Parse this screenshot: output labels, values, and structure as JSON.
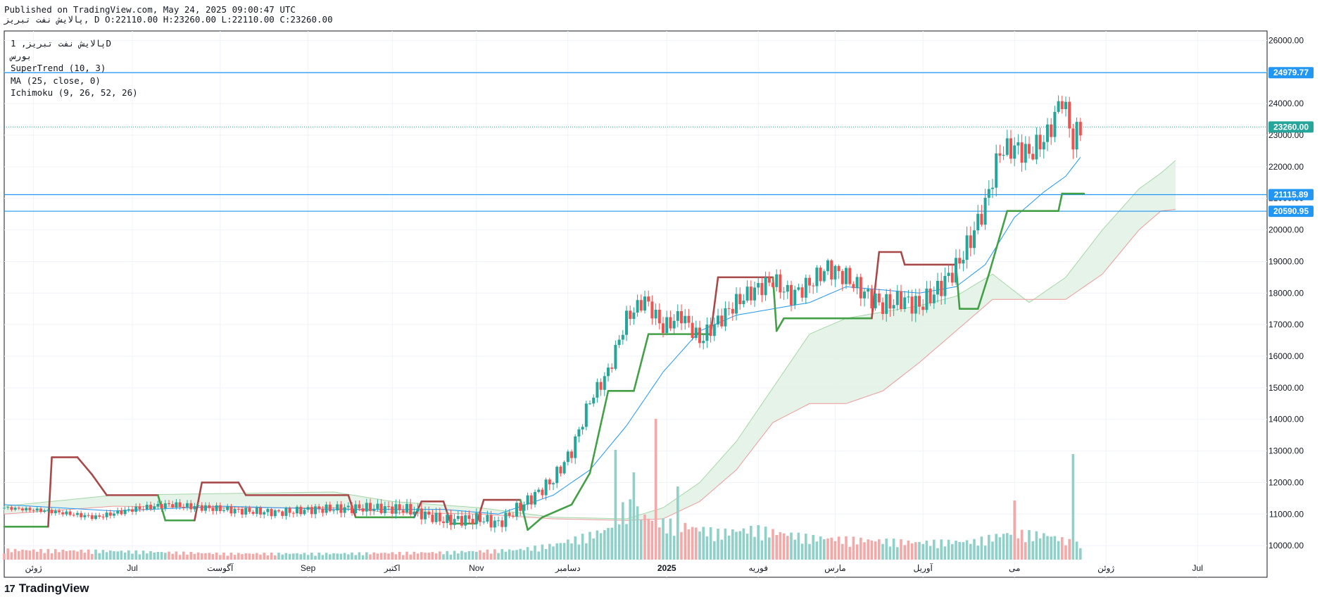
{
  "header": {
    "published": "Published on TradingView.com, May 24, 2025 09:00:47 UTC",
    "ohlc_line": "پالایش نفت تبریز, D O:22110.00 H:23260.00 L:22110.00 C:23260.00"
  },
  "legend": {
    "symbol": "پالایش نفت تبریز, 1D",
    "exchange": "بورس",
    "supertrend": "SuperTrend (10, 3)",
    "ma": "MA (25, close, 0)",
    "ichimoku": "Ichimoku (9, 26, 52, 26)"
  },
  "brand": {
    "logo": "17",
    "name": "TradingView"
  },
  "colors": {
    "up": "#26a69a",
    "down": "#ef5350",
    "ma": "#2196f3",
    "st_up": "#43a047",
    "st_down": "#a84949",
    "hline": "#2196f3",
    "last_price": "#26a69a",
    "cloud_up_fill": "#e3f2e5",
    "cloud_down_fill": "#fbe4e4",
    "vol_up": "#8fd0c9",
    "vol_down": "#f4a9a8"
  },
  "chart_data": {
    "type": "candlestick",
    "y_axis": {
      "ticks": [
        "26000.00",
        "25000.00",
        "24000.00",
        "23000.00",
        "22000.00",
        "21000.00",
        "20000.00",
        "19000.00",
        "18000.00",
        "17000.00",
        "16000.00",
        "15000.00",
        "14000.00",
        "13000.00",
        "12000.00",
        "11000.00",
        "10000.00"
      ],
      "ylim": [
        9000,
        26300
      ]
    },
    "x_axis": {
      "ticks": [
        {
          "label": "ژوئن",
          "t": 8
        },
        {
          "label": "Jul",
          "t": 35
        },
        {
          "label": "آگوست",
          "t": 59
        },
        {
          "label": "Sep",
          "t": 83
        },
        {
          "label": "اکتبر",
          "t": 106
        },
        {
          "label": "Nov",
          "t": 129
        },
        {
          "label": "دسامبر",
          "t": 154
        },
        {
          "label": "2025",
          "t": 181
        },
        {
          "label": "فوریه",
          "t": 206
        },
        {
          "label": "مارس",
          "t": 227
        },
        {
          "label": "آوریل",
          "t": 251
        },
        {
          "label": "می",
          "t": 276
        },
        {
          "label": "ژوئن",
          "t": 301
        },
        {
          "label": "Jul",
          "t": 326
        }
      ],
      "xlim": [
        0,
        345
      ]
    },
    "horizontal_lines": [
      {
        "value": 24979.77,
        "label": "24979.77"
      },
      {
        "value": 21115.89,
        "label": "21115.89"
      },
      {
        "value": 20590.95,
        "label": "20590.95"
      }
    ],
    "last_price": {
      "value": 23260.0,
      "label": "23260.00"
    },
    "anchors": {
      "close": [
        [
          0,
          11200
        ],
        [
          12,
          11100
        ],
        [
          25,
          10900
        ],
        [
          35,
          11150
        ],
        [
          45,
          11300
        ],
        [
          55,
          11200
        ],
        [
          65,
          11100
        ],
        [
          75,
          11050
        ],
        [
          85,
          11150
        ],
        [
          100,
          11200
        ],
        [
          110,
          11150
        ],
        [
          120,
          10800
        ],
        [
          130,
          10850
        ],
        [
          135,
          10700
        ],
        [
          140,
          11150
        ],
        [
          145,
          11600
        ],
        [
          150,
          12100
        ],
        [
          155,
          13000
        ],
        [
          160,
          14600
        ],
        [
          165,
          15500
        ],
        [
          170,
          17200
        ],
        [
          175,
          17800
        ],
        [
          180,
          16900
        ],
        [
          185,
          17300
        ],
        [
          190,
          16500
        ],
        [
          195,
          17100
        ],
        [
          200,
          17700
        ],
        [
          205,
          18100
        ],
        [
          210,
          18400
        ],
        [
          215,
          17900
        ],
        [
          220,
          18300
        ],
        [
          225,
          18800
        ],
        [
          230,
          18500
        ],
        [
          235,
          18000
        ],
        [
          240,
          17600
        ],
        [
          245,
          17800
        ],
        [
          250,
          17600
        ],
        [
          255,
          18100
        ],
        [
          260,
          18800
        ],
        [
          264,
          19700
        ],
        [
          268,
          20800
        ],
        [
          272,
          22500
        ],
        [
          276,
          22600
        ],
        [
          280,
          22400
        ],
        [
          285,
          23000
        ],
        [
          289,
          24200
        ],
        [
          292,
          22800
        ],
        [
          294,
          23260
        ]
      ],
      "supertrend": [
        [
          0,
          10600
        ],
        [
          12,
          10600
        ],
        [
          13,
          12800
        ],
        [
          20,
          12800
        ],
        [
          24,
          12250
        ],
        [
          28,
          11600
        ],
        [
          42,
          11600
        ],
        [
          44,
          10800
        ],
        [
          52,
          10800
        ],
        [
          54,
          12000
        ],
        [
          64,
          12000
        ],
        [
          66,
          11600
        ],
        [
          94,
          11600
        ],
        [
          96,
          10900
        ],
        [
          112,
          10900
        ],
        [
          114,
          11400
        ],
        [
          120,
          11400
        ],
        [
          122,
          10700
        ],
        [
          129,
          10700
        ],
        [
          131,
          11450
        ],
        [
          141,
          11450
        ],
        [
          143,
          10500
        ],
        [
          147,
          10900
        ],
        [
          155,
          11300
        ],
        [
          160,
          12300
        ],
        [
          165,
          14900
        ],
        [
          172,
          14900
        ],
        [
          176,
          16700
        ],
        [
          193,
          16700
        ],
        [
          195,
          18500
        ],
        [
          210,
          18500
        ],
        [
          211,
          16800
        ],
        [
          213,
          17200
        ],
        [
          237,
          17200
        ],
        [
          239,
          19300
        ],
        [
          245,
          19300
        ],
        [
          246,
          18900
        ],
        [
          260,
          18900
        ],
        [
          261,
          17500
        ],
        [
          266,
          17500
        ],
        [
          269,
          18600
        ],
        [
          274,
          20600
        ],
        [
          288,
          20600
        ],
        [
          289,
          21150
        ],
        [
          295,
          21150
        ]
      ],
      "ma": [
        [
          0,
          11300
        ],
        [
          30,
          11100
        ],
        [
          60,
          11250
        ],
        [
          90,
          11150
        ],
        [
          120,
          11150
        ],
        [
          135,
          11000
        ],
        [
          150,
          11600
        ],
        [
          160,
          12400
        ],
        [
          170,
          13800
        ],
        [
          180,
          15500
        ],
        [
          190,
          16800
        ],
        [
          200,
          17300
        ],
        [
          210,
          17500
        ],
        [
          220,
          17700
        ],
        [
          230,
          18200
        ],
        [
          240,
          18100
        ],
        [
          250,
          18000
        ],
        [
          260,
          18200
        ],
        [
          268,
          18900
        ],
        [
          276,
          20400
        ],
        [
          284,
          21200
        ],
        [
          290,
          21700
        ],
        [
          294,
          22300
        ]
      ],
      "cloud_a": [
        [
          0,
          11250
        ],
        [
          30,
          11600
        ],
        [
          60,
          11650
        ],
        [
          90,
          11700
        ],
        [
          106,
          11400
        ],
        [
          130,
          11200
        ],
        [
          150,
          10900
        ],
        [
          170,
          10850
        ],
        [
          180,
          11200
        ],
        [
          190,
          12000
        ],
        [
          200,
          13300
        ],
        [
          210,
          15000
        ],
        [
          220,
          16700
        ],
        [
          230,
          17200
        ],
        [
          240,
          17400
        ],
        [
          250,
          17600
        ],
        [
          260,
          17900
        ],
        [
          270,
          18600
        ],
        [
          280,
          17700
        ],
        [
          290,
          18500
        ],
        [
          300,
          20000
        ],
        [
          310,
          21300
        ],
        [
          316,
          21800
        ],
        [
          320,
          22200
        ]
      ],
      "cloud_b": [
        [
          0,
          11000
        ],
        [
          30,
          11250
        ],
        [
          60,
          11200
        ],
        [
          90,
          11200
        ],
        [
          106,
          11050
        ],
        [
          130,
          11000
        ],
        [
          150,
          10850
        ],
        [
          170,
          10800
        ],
        [
          180,
          10850
        ],
        [
          190,
          11400
        ],
        [
          200,
          12400
        ],
        [
          210,
          13900
        ],
        [
          220,
          14500
        ],
        [
          230,
          14500
        ],
        [
          240,
          14900
        ],
        [
          250,
          15800
        ],
        [
          260,
          16800
        ],
        [
          270,
          17800
        ],
        [
          280,
          17800
        ],
        [
          290,
          17800
        ],
        [
          300,
          18600
        ],
        [
          310,
          20000
        ],
        [
          316,
          20600
        ],
        [
          320,
          20650
        ]
      ]
    },
    "volume_profile": [
      [
        0,
        0.08
      ],
      [
        30,
        0.07
      ],
      [
        60,
        0.05
      ],
      [
        90,
        0.05
      ],
      [
        120,
        0.06
      ],
      [
        140,
        0.08
      ],
      [
        150,
        0.12
      ],
      [
        160,
        0.2
      ],
      [
        165,
        0.25
      ],
      [
        170,
        0.45
      ],
      [
        175,
        0.35
      ],
      [
        180,
        0.3
      ],
      [
        185,
        0.28
      ],
      [
        195,
        0.22
      ],
      [
        205,
        0.25
      ],
      [
        220,
        0.18
      ],
      [
        235,
        0.16
      ],
      [
        250,
        0.14
      ],
      [
        265,
        0.15
      ],
      [
        275,
        0.22
      ],
      [
        285,
        0.2
      ],
      [
        294,
        0.12
      ]
    ],
    "volume_spikes": [
      [
        167,
        0.78
      ],
      [
        172,
        0.62
      ],
      [
        178,
        1.0
      ],
      [
        184,
        0.52
      ],
      [
        276,
        0.42
      ],
      [
        292,
        0.75
      ]
    ]
  }
}
